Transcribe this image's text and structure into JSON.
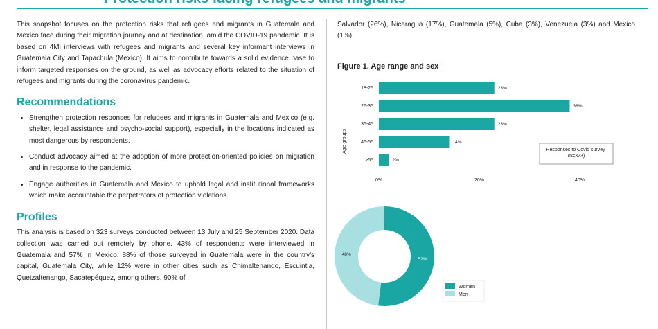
{
  "header_title": "Protection risks facing refugees and migrants",
  "intro": "This snapshot focuses on the protection risks that refugees and migrants in Guatemala and Mexico face during their migration journey and at destination, amid the COVID-19 pandemic. It is based on 4Mi interviews with refugees and migrants and several key informant interviews in Guatemala City and Tapachula (Mexico). It aims to contribute towards a solid evidence base to inform targeted responses on the ground, as well as advocacy efforts related to the situation of refugees and migrants during the coronavirus pandemic.",
  "recommendations": {
    "heading": "Recommendations",
    "items": [
      "Strengthen protection responses for refugees and migrants in Guatemala and Mexico (e.g. shelter, legal assistance and psycho-social support), especially in the locations indicated as most dangerous by respondents.",
      "Conduct advocacy aimed at the adoption of more protection-oriented policies on migration and in response to the pandemic.",
      "Engage authorities in Guatemala and Mexico to uphold legal and institutional frameworks which make accountable the perpetrators of protection violations."
    ]
  },
  "profiles": {
    "heading": "Profiles",
    "text": "This analysis is based on 323 surveys conducted between 13 July and 25 September 2020. Data collection was carried out remotely by phone. 43% of respondents were interviewed in Guatemala and 57% in Mexico. 88% of those surveyed in Guatemala were in the country's capital, Guatemala City, while 12% were in other cities such as Chimaltenango, Escuintla, Quetzaltenango, Sacatepéquez, among others. 90% of"
  },
  "right_text": "Salvador (26%), Nicaragua (17%), Guatemala (5%), Cuba (3%), Venezuela (3%) and Mexico (1%).",
  "figure_title": "Figure 1. Age range and sex",
  "colors": {
    "accent": "#1aa7a4",
    "light": "#a8e0e1"
  },
  "chart_data": [
    {
      "type": "bar",
      "orientation": "horizontal",
      "categories": [
        "18-25",
        "26-35",
        "36-45",
        "46-55",
        ">55"
      ],
      "values": [
        23,
        38,
        23,
        14,
        2
      ],
      "data_labels": [
        "23%",
        "38%",
        "23%",
        "14%",
        "2%"
      ],
      "ylabel": "Age groups",
      "xticks": [
        "0%",
        "20%",
        "40%"
      ],
      "xlim": [
        0,
        40
      ],
      "note": "Responses to Covid survey (n=323)"
    },
    {
      "type": "pie",
      "donut": true,
      "categories": [
        "Women",
        "Men"
      ],
      "values": [
        52,
        48
      ],
      "data_labels": [
        "52%",
        "48%"
      ],
      "colors": [
        "#1aa7a4",
        "#a8e0e1"
      ],
      "legend": "bottom-right"
    }
  ]
}
